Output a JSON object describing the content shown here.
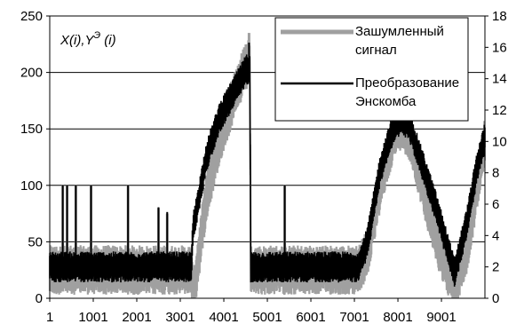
{
  "chart_data": {
    "type": "line",
    "title": "",
    "xlabel": "",
    "ylabel": "",
    "annotation": {
      "base": "X(i),Y",
      "sup": "Э",
      "tail": " (i)"
    },
    "x_ticks": [
      "1",
      "1001",
      "2001",
      "3001",
      "4001",
      "5001",
      "6001",
      "7001",
      "8001",
      "9001"
    ],
    "y_left_ticks": [
      "0",
      "50",
      "100",
      "150",
      "200",
      "250"
    ],
    "y_right_ticks": [
      "0",
      "2",
      "4",
      "6",
      "8",
      "10",
      "12",
      "14",
      "16",
      "18"
    ],
    "xlim": [
      1,
      10000
    ],
    "ylim_left": [
      0,
      250
    ],
    "ylim_right": [
      0,
      18
    ],
    "grid": "horizontal",
    "legend_position": "top-right",
    "series": [
      {
        "name": "Зашумленный сигнал",
        "name_lines": [
          "Зашумленный",
          "сигнал"
        ],
        "axis": "left",
        "color": "#a0a0a0",
        "x": [
          1,
          3250,
          3300,
          3600,
          3900,
          4200,
          4500,
          4600,
          4620,
          7100,
          7300,
          7600,
          7900,
          8100,
          8300,
          8600,
          8900,
          9300,
          9600,
          9800,
          10000
        ],
        "y": [
          25,
          25,
          0,
          90,
          140,
          175,
          205,
          210,
          25,
          25,
          40,
          100,
          145,
          155,
          140,
          95,
          50,
          10,
          45,
          95,
          140
        ],
        "spikes_x": [
          300,
          400,
          600,
          950,
          1800,
          2500,
          2700,
          4580,
          5400
        ],
        "spikes_y": [
          100,
          100,
          100,
          100,
          100,
          80,
          75,
          235,
          100
        ]
      },
      {
        "name": "Преобразование Энскомба",
        "name_lines": [
          "Преобразование",
          "Энскомба"
        ],
        "axis": "right",
        "color": "#000000",
        "x": [
          1,
          3250,
          3300,
          3600,
          3900,
          4200,
          4500,
          4600,
          4620,
          7100,
          7300,
          7600,
          7900,
          8100,
          8300,
          8600,
          8900,
          9300,
          9600,
          9800,
          10000
        ],
        "y": [
          2.0,
          2.0,
          4.5,
          9.0,
          11.5,
          13.0,
          14.5,
          14.8,
          2.0,
          2.0,
          3.6,
          8.3,
          10.9,
          11.5,
          10.7,
          8.2,
          5.6,
          1.6,
          5.0,
          8.1,
          10.3
        ],
        "spikes_x": [
          300,
          400,
          600,
          950,
          1800,
          2500,
          2700,
          4580,
          5400
        ],
        "spikes_y": [
          7.2,
          7.2,
          7.2,
          7.2,
          7.2,
          5.8,
          5.5,
          16.3,
          7.2
        ]
      }
    ]
  }
}
